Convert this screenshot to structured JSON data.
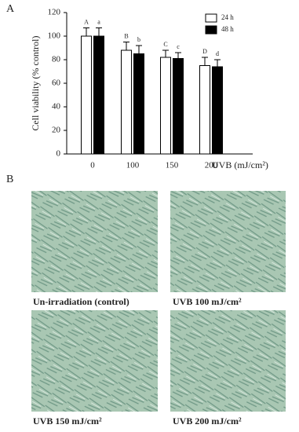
{
  "panel_labels": [
    "A",
    "B"
  ],
  "chart_data": {
    "type": "bar",
    "y_label": "Cell viability (% control)",
    "x_label": "UVB (mJ/cm²)",
    "categories": [
      "0",
      "100",
      "150",
      "200"
    ],
    "series": [
      {
        "name": "24 h",
        "color": "#ffffff",
        "values": [
          100,
          88,
          82,
          75
        ],
        "errors": [
          7,
          7,
          6,
          7
        ],
        "letters": [
          "A",
          "B",
          "C",
          "D"
        ]
      },
      {
        "name": "48 h",
        "color": "#000000",
        "values": [
          100,
          85,
          81,
          74
        ],
        "errors": [
          7,
          7,
          5,
          6
        ],
        "letters": [
          "a",
          "b",
          "c",
          "d"
        ]
      }
    ],
    "ylim": [
      0,
      120
    ],
    "yticks": [
      0,
      20,
      40,
      60,
      80,
      100,
      120
    ],
    "legend": "upper right"
  },
  "images": [
    {
      "caption": "Un-irradiation (control)"
    },
    {
      "caption": "UVB 100 mJ/cm²"
    },
    {
      "caption": "UVB 150 mJ/cm²"
    },
    {
      "caption": "UVB 200 mJ/cm²"
    }
  ]
}
